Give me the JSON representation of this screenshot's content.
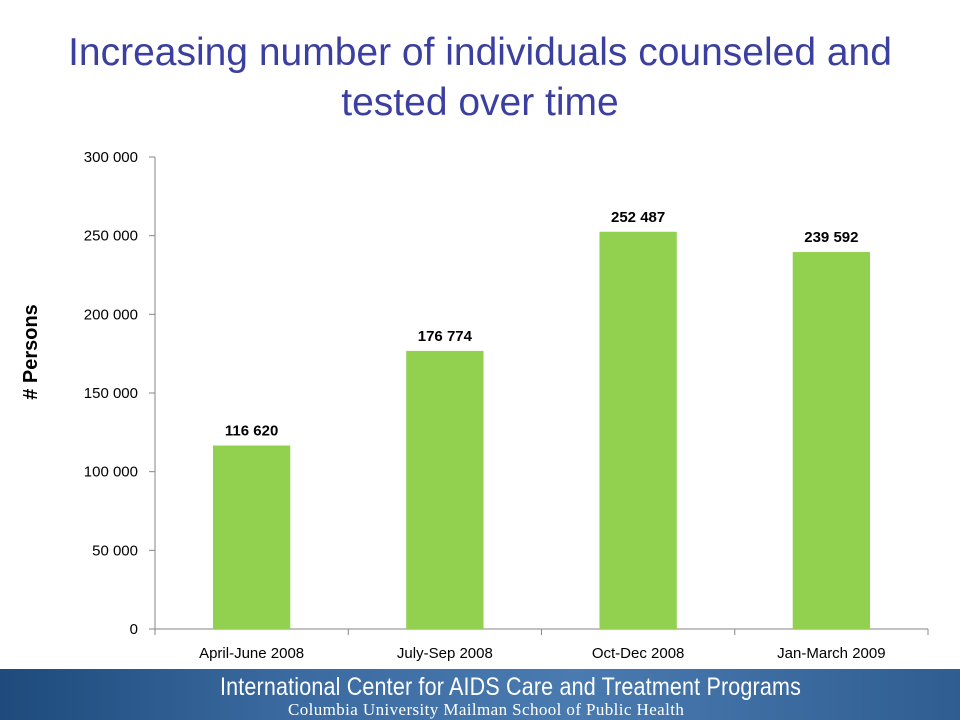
{
  "chart_data": {
    "type": "bar",
    "title": "Increasing number of individuals counseled and tested over time",
    "ylabel": "# Persons",
    "xlabel": "",
    "categories": [
      "April-June 2008",
      "July-Sep 2008",
      "Oct-Dec 2008",
      "Jan-March 2009"
    ],
    "values": [
      116620,
      176774,
      252487,
      239592
    ],
    "value_labels": [
      "116 620",
      "176 774",
      "252 487",
      "239 592"
    ],
    "ylim": [
      0,
      300000
    ],
    "yticks": [
      0,
      50000,
      100000,
      150000,
      200000,
      250000,
      300000
    ],
    "ytick_labels": [
      "0",
      "50 000",
      "100 000",
      "150 000",
      "200 000",
      "250 000",
      "300 000"
    ],
    "bar_color": "#92d050",
    "grid": false,
    "legend": "none"
  },
  "footer": {
    "org_name": "International Center for AIDS Care and Treatment Programs",
    "school_name": "Columbia University Mailman School of Public Health"
  },
  "colors": {
    "title": "#3b3fa0",
    "footer_band": "#3a6aa0"
  }
}
